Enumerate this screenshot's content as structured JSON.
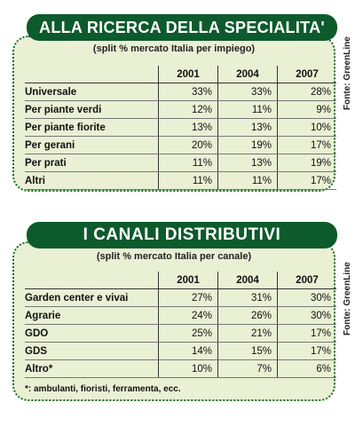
{
  "chart_data": [
    {
      "type": "table",
      "title": "ALLA RICERCA DELLA SPECIALITA'",
      "subtitle": "(split % mercato Italia per impiego)",
      "source": "Fonte: GreenLine",
      "columns": [
        "2001",
        "2004",
        "2007"
      ],
      "rows": [
        {
          "label": "Universale",
          "values": [
            "33%",
            "33%",
            "28%"
          ]
        },
        {
          "label": "Per piante verdi",
          "values": [
            "12%",
            "11%",
            "9%"
          ]
        },
        {
          "label": "Per piante fiorite",
          "values": [
            "13%",
            "13%",
            "10%"
          ]
        },
        {
          "label": "Per gerani",
          "values": [
            "20%",
            "19%",
            "17%"
          ]
        },
        {
          "label": "Per prati",
          "values": [
            "11%",
            "13%",
            "19%"
          ]
        },
        {
          "label": "Altri",
          "values": [
            "11%",
            "11%",
            "17%"
          ]
        }
      ]
    },
    {
      "type": "table",
      "title": "I CANALI DISTRIBUTIVI",
      "subtitle": "(split % mercato Italia per canale)",
      "source": "Fonte: GreenLine",
      "columns": [
        "2001",
        "2004",
        "2007"
      ],
      "rows": [
        {
          "label": "Garden center e vivai",
          "values": [
            "27%",
            "31%",
            "30%"
          ]
        },
        {
          "label": "Agrarie",
          "values": [
            "24%",
            "26%",
            "30%"
          ]
        },
        {
          "label": "GDO",
          "values": [
            "25%",
            "21%",
            "17%"
          ]
        },
        {
          "label": "GDS",
          "values": [
            "14%",
            "15%",
            "17%"
          ]
        },
        {
          "label": "Altro*",
          "values": [
            "10%",
            "7%",
            "6%"
          ]
        }
      ],
      "footnote": "*: ambulanti, fioristi, ferramenta, ecc."
    }
  ],
  "colors": {
    "banner": "#0d5a2c",
    "panel": "#eaf0d4",
    "border": "#1a6a30"
  }
}
